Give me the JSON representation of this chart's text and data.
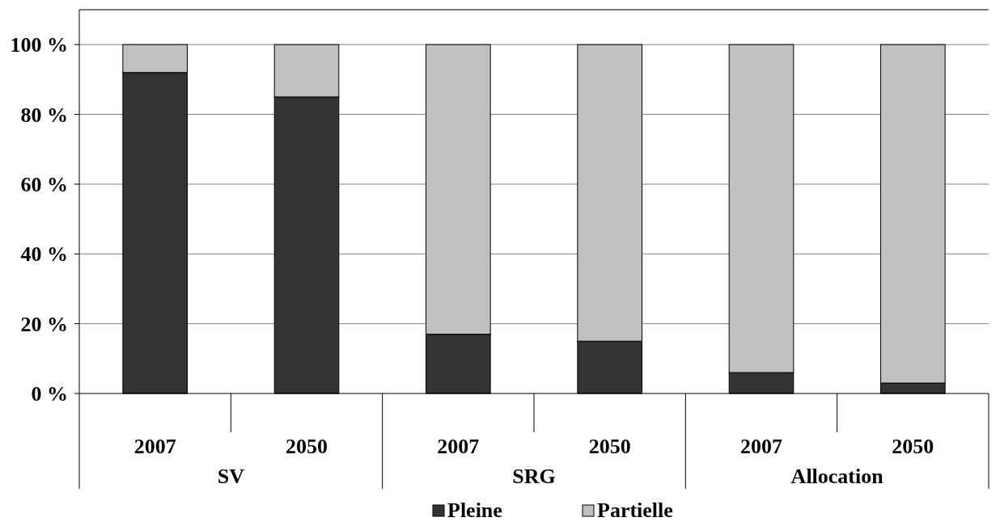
{
  "chart_data": {
    "type": "bar",
    "stacked": true,
    "categories": [
      "2007",
      "2050",
      "2007",
      "2050",
      "2007",
      "2050"
    ],
    "series": [
      {
        "name": "Pleine",
        "color": "#333333",
        "values": [
          92,
          85,
          17,
          15,
          6,
          3
        ]
      },
      {
        "name": "Partielle",
        "color": "#c0c0c0",
        "values": [
          8,
          15,
          83,
          85,
          94,
          97
        ]
      }
    ],
    "ylim": [
      0,
      110
    ],
    "yticks": [
      {
        "value": 0,
        "label": "0 %"
      },
      {
        "value": 20,
        "label": "20 %"
      },
      {
        "value": 40,
        "label": "40 %"
      },
      {
        "value": 60,
        "label": "60 %"
      },
      {
        "value": 80,
        "label": "80 %"
      },
      {
        "value": 100,
        "label": "100 %"
      }
    ],
    "grid": "y",
    "legend": "bottom",
    "annotations": [
      "SV",
      "SRG",
      "Allocation"
    ]
  }
}
